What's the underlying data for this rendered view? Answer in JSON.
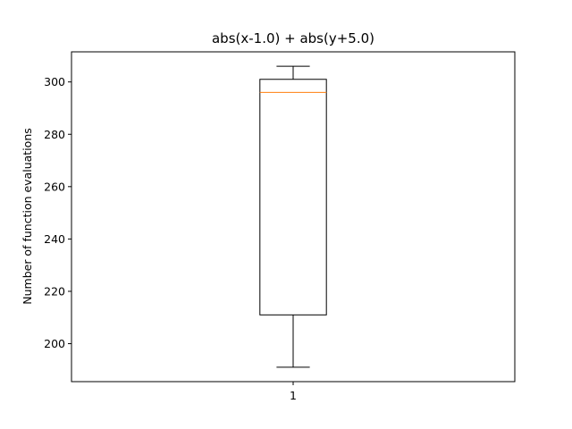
{
  "chart_data": {
    "type": "box",
    "title": "abs(x-1.0) + abs(y+5.0)",
    "xlabel": "",
    "ylabel": "Number of function evaluations",
    "categories": [
      "1"
    ],
    "series": [
      {
        "whisker_low": 191,
        "q1": 211,
        "median": 296,
        "q3": 301,
        "whisker_high": 306
      }
    ],
    "ylim": [
      185.5,
      311.5
    ],
    "yticks": [
      200,
      220,
      240,
      260,
      280,
      300
    ],
    "grid": false,
    "legend": "none",
    "colors": {
      "box": "#000000",
      "median": "#ff7f0e",
      "axes": "#000000",
      "background": "#ffffff"
    }
  }
}
